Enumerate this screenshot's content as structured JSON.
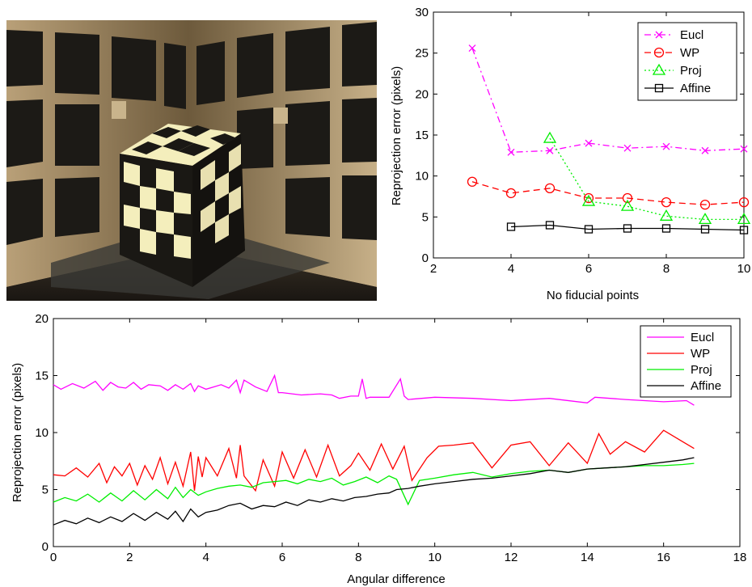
{
  "photo": {
    "description_icon": "checkerboard-cube-photo-icon"
  },
  "chart_data": [
    {
      "type": "line",
      "title": "",
      "xlabel": "No fiducial points",
      "ylabel": "Reprojection error (pixels)",
      "xlim": [
        2,
        10
      ],
      "ylim": [
        0,
        30
      ],
      "xticks": [
        2,
        4,
        6,
        8,
        10
      ],
      "yticks": [
        0,
        5,
        10,
        15,
        20,
        25,
        30
      ],
      "grid": false,
      "legend_position": "top-right",
      "series": [
        {
          "name": "Eucl",
          "color": "#ff00ff",
          "style": "dash-dot",
          "marker": "x",
          "x": [
            3,
            4,
            5,
            6,
            7,
            8,
            9,
            10
          ],
          "y": [
            25.6,
            12.9,
            13.1,
            14.0,
            13.4,
            13.6,
            13.1,
            13.3
          ]
        },
        {
          "name": "WP",
          "color": "#ff0000",
          "style": "dashed",
          "marker": "circle",
          "x": [
            3,
            4,
            5,
            6,
            7,
            8,
            9,
            10
          ],
          "y": [
            9.3,
            7.9,
            8.5,
            7.3,
            7.3,
            6.8,
            6.5,
            6.8
          ]
        },
        {
          "name": "Proj",
          "color": "#00ee00",
          "style": "dotted",
          "marker": "triangle",
          "x": [
            5,
            6,
            7,
            8,
            9,
            10
          ],
          "y": [
            14.6,
            6.9,
            6.3,
            5.1,
            4.7,
            4.7
          ]
        },
        {
          "name": "Affine",
          "color": "#000000",
          "style": "solid",
          "marker": "square",
          "x": [
            4,
            5,
            6,
            7,
            8,
            9,
            10
          ],
          "y": [
            3.8,
            4.0,
            3.5,
            3.6,
            3.6,
            3.5,
            3.4
          ]
        }
      ]
    },
    {
      "type": "line",
      "title": "",
      "xlabel": "Angular difference",
      "ylabel": "Reprojection error (pixels)",
      "xlim": [
        0,
        18
      ],
      "ylim": [
        0,
        20
      ],
      "xticks": [
        0,
        2,
        4,
        6,
        8,
        10,
        12,
        14,
        16,
        18
      ],
      "yticks": [
        0,
        5,
        10,
        15,
        20
      ],
      "grid": false,
      "legend_position": "top-right",
      "series": [
        {
          "name": "Eucl",
          "color": "#ff00ff",
          "x": [
            0,
            0.2,
            0.5,
            0.8,
            1.1,
            1.3,
            1.5,
            1.7,
            1.9,
            2.1,
            2.3,
            2.5,
            2.8,
            3.0,
            3.2,
            3.4,
            3.6,
            3.7,
            3.8,
            4.0,
            4.2,
            4.4,
            4.6,
            4.8,
            4.9,
            5.0,
            5.3,
            5.6,
            5.8,
            5.9,
            6.0,
            6.5,
            7.0,
            7.3,
            7.5,
            7.8,
            8.0,
            8.1,
            8.2,
            8.3,
            8.8,
            9.1,
            9.2,
            9.3,
            10,
            11,
            12,
            13,
            14,
            14.2,
            15,
            16,
            16.6,
            16.8
          ],
          "y": [
            14.2,
            13.8,
            14.3,
            13.9,
            14.5,
            13.7,
            14.4,
            14.0,
            13.9,
            14.4,
            13.8,
            14.2,
            14.1,
            13.7,
            14.2,
            13.8,
            14.3,
            13.6,
            14.1,
            13.8,
            14.0,
            14.2,
            13.9,
            14.6,
            13.5,
            14.6,
            14.0,
            13.6,
            15.0,
            13.5,
            13.5,
            13.3,
            13.4,
            13.3,
            13.0,
            13.2,
            13.2,
            14.7,
            13.0,
            13.1,
            13.1,
            14.7,
            13.2,
            12.9,
            13.1,
            13.0,
            12.8,
            13.0,
            12.6,
            13.1,
            12.9,
            12.7,
            12.8,
            12.4
          ]
        },
        {
          "name": "WP",
          "color": "#ff0000",
          "x": [
            0,
            0.3,
            0.6,
            0.9,
            1.2,
            1.4,
            1.6,
            1.8,
            2.0,
            2.2,
            2.4,
            2.6,
            2.8,
            3.0,
            3.2,
            3.4,
            3.6,
            3.7,
            3.8,
            3.9,
            4.0,
            4.3,
            4.6,
            4.8,
            4.9,
            5.0,
            5.3,
            5.5,
            5.8,
            6.0,
            6.3,
            6.6,
            6.9,
            7.2,
            7.5,
            7.8,
            8.0,
            8.3,
            8.6,
            8.9,
            9.2,
            9.4,
            9.8,
            10.1,
            10.5,
            11,
            11.5,
            12,
            12.5,
            13,
            13.5,
            14,
            14.3,
            14.6,
            15,
            15.5,
            16,
            16.5,
            16.8
          ],
          "y": [
            6.3,
            6.2,
            6.9,
            6.1,
            7.3,
            5.6,
            7.0,
            6.2,
            7.3,
            5.4,
            7.1,
            5.9,
            7.8,
            5.5,
            7.4,
            5.3,
            8.3,
            4.9,
            7.9,
            6.1,
            7.8,
            6.2,
            8.6,
            6.0,
            8.9,
            6.2,
            4.9,
            7.6,
            5.3,
            8.3,
            6.0,
            8.5,
            6.1,
            8.9,
            6.2,
            7.1,
            8.2,
            6.7,
            9.0,
            6.8,
            8.8,
            5.8,
            7.8,
            8.8,
            8.9,
            9.1,
            6.9,
            8.9,
            9.2,
            7.1,
            9.1,
            7.3,
            9.9,
            8.1,
            9.2,
            8.3,
            10.2,
            9.2,
            8.6
          ]
        },
        {
          "name": "Proj",
          "color": "#00ee00",
          "x": [
            0,
            0.3,
            0.6,
            0.9,
            1.2,
            1.5,
            1.8,
            2.1,
            2.4,
            2.7,
            3.0,
            3.2,
            3.4,
            3.6,
            3.8,
            4.0,
            4.3,
            4.6,
            4.9,
            5.2,
            5.5,
            5.8,
            6.1,
            6.4,
            6.7,
            7.0,
            7.3,
            7.6,
            7.9,
            8.2,
            8.5,
            8.8,
            9.0,
            9.3,
            9.6,
            10,
            10.5,
            11,
            11.5,
            12,
            12.5,
            13,
            13.5,
            14,
            14.5,
            15,
            15.5,
            16,
            16.5,
            16.8
          ],
          "y": [
            3.9,
            4.3,
            4.0,
            4.6,
            3.9,
            4.7,
            4.0,
            4.9,
            4.1,
            5.0,
            4.2,
            5.2,
            4.3,
            5.0,
            4.5,
            4.8,
            5.1,
            5.3,
            5.4,
            5.2,
            5.6,
            5.7,
            5.8,
            5.5,
            5.9,
            5.7,
            6.0,
            5.4,
            5.7,
            6.1,
            5.6,
            6.2,
            5.9,
            3.7,
            5.8,
            6.0,
            6.3,
            6.5,
            6.1,
            6.4,
            6.6,
            6.7,
            6.5,
            6.8,
            6.9,
            7.0,
            7.1,
            7.1,
            7.2,
            7.3
          ]
        },
        {
          "name": "Affine",
          "color": "#000000",
          "x": [
            0,
            0.3,
            0.6,
            0.9,
            1.2,
            1.5,
            1.8,
            2.1,
            2.4,
            2.7,
            3.0,
            3.2,
            3.4,
            3.6,
            3.8,
            4.0,
            4.3,
            4.6,
            4.9,
            5.2,
            5.5,
            5.8,
            6.1,
            6.4,
            6.7,
            7.0,
            7.3,
            7.6,
            7.9,
            8.2,
            8.5,
            8.8,
            9.0,
            9.3,
            9.6,
            10,
            10.5,
            11,
            11.5,
            12,
            12.5,
            13,
            13.5,
            14,
            14.5,
            15,
            15.5,
            16,
            16.5,
            16.8
          ],
          "y": [
            1.9,
            2.3,
            2.0,
            2.5,
            2.1,
            2.6,
            2.2,
            2.9,
            2.3,
            3.0,
            2.4,
            3.1,
            2.2,
            3.3,
            2.6,
            3.0,
            3.2,
            3.6,
            3.8,
            3.3,
            3.6,
            3.5,
            3.9,
            3.6,
            4.1,
            3.9,
            4.2,
            4.0,
            4.3,
            4.4,
            4.6,
            4.7,
            5.0,
            5.1,
            5.3,
            5.5,
            5.7,
            5.9,
            6.0,
            6.2,
            6.4,
            6.7,
            6.5,
            6.8,
            6.9,
            7.0,
            7.2,
            7.4,
            7.6,
            7.8
          ]
        }
      ]
    }
  ]
}
